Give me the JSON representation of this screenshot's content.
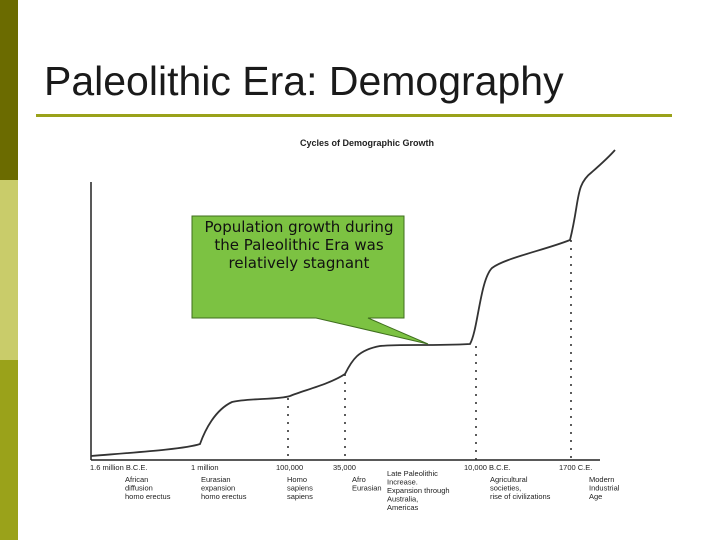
{
  "slide": {
    "title": "Paleolithic Era: Demography",
    "callout": "Population growth during the Paleolithic Era was relatively stagnant"
  },
  "colors": {
    "band_dark": "#6b6b00",
    "band_light": "#c9cc6a",
    "band_mid": "#9aa21a",
    "callout_fill": "#7cc242",
    "curve": "#333333"
  },
  "chart_data": {
    "type": "line",
    "title": "Cycles of Demographic Growth",
    "xlabel": "",
    "ylabel": "",
    "grid": false,
    "markers": [
      {
        "date": "1.6 million B.C.E.",
        "caption": [
          "African",
          "diffusion",
          "homo erectus"
        ],
        "level": 0.02
      },
      {
        "date": "1 million",
        "caption": [
          "Eurasian",
          "expansion",
          "homo erectus"
        ],
        "level": 0.06
      },
      {
        "date": "100,000",
        "caption": [
          "Homo",
          "sapiens",
          "sapiens"
        ],
        "level": 0.25
      },
      {
        "date": "35,000",
        "caption": [
          "Afro",
          "Eurasian"
        ],
        "level": 0.33
      },
      {
        "date": "",
        "caption": [
          "Late Paleolithic",
          "Increase.",
          "Expansion through",
          "Australia,",
          "Americas"
        ],
        "level": 0.42
      },
      {
        "date": "10,000 B.C.E.",
        "caption": [
          "Agricultural",
          "societies,",
          "rise of civilizations"
        ],
        "level": 0.43
      },
      {
        "date": "1700 C.E.",
        "caption": [
          "Modern",
          "Industrial",
          "Age"
        ],
        "level": 0.78
      }
    ],
    "curve": {
      "description_levels": [
        0.02,
        0.06,
        0.25,
        0.25,
        0.33,
        0.43,
        0.43,
        0.43,
        0.6,
        0.78,
        1.0
      ],
      "positions": [
        0,
        0.21,
        0.3,
        0.37,
        0.4,
        0.46,
        0.52,
        0.6,
        0.7,
        0.81,
        1.0
      ]
    }
  }
}
